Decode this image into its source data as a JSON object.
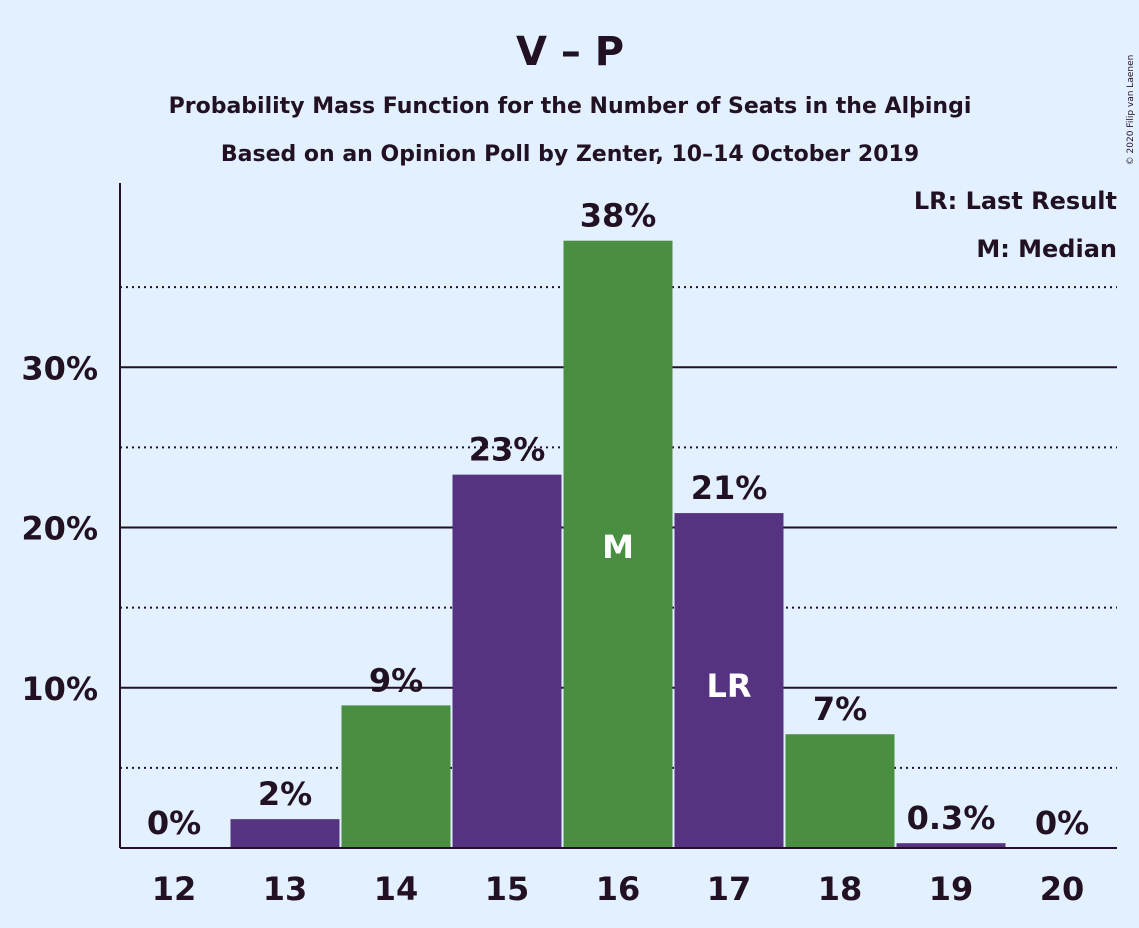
{
  "chart_data": {
    "type": "bar",
    "title": "V – P",
    "subtitle": "Probability Mass Function for the Number of Seats in the Alþingi",
    "subtitle2": "Based on an Opinion Poll by Zenter, 10–14 October 2019",
    "copyright": "© 2020 Filip van Laenen",
    "legend": [
      "LR: Last Result",
      "M: Median"
    ],
    "categories": [
      "12",
      "13",
      "14",
      "15",
      "16",
      "17",
      "18",
      "19",
      "20"
    ],
    "values": [
      0,
      1.8,
      8.9,
      23.3,
      37.9,
      20.9,
      7.1,
      0.3,
      0
    ],
    "value_labels": [
      "0%",
      "2%",
      "9%",
      "23%",
      "38%",
      "21%",
      "7%",
      "0.3%",
      "0%"
    ],
    "bar_colors": [
      "#553380",
      "#553380",
      "#4a8f41",
      "#553380",
      "#4a8f41",
      "#553380",
      "#4a8f41",
      "#553380",
      "#553380"
    ],
    "markers": [
      {
        "category": "16",
        "label": "M"
      },
      {
        "category": "17",
        "label": "LR"
      }
    ],
    "yticks": [
      10,
      20,
      30
    ],
    "ytick_labels": [
      "10%",
      "20%",
      "30%"
    ],
    "minor_gridlines": [
      5,
      15,
      25,
      35
    ],
    "ylim": [
      0,
      41.5
    ],
    "grid": true,
    "legend_position": "top-right",
    "colors": {
      "background": "#e3f0ff",
      "purple": "#553380",
      "green": "#4a8f41",
      "text": "#221122"
    }
  }
}
